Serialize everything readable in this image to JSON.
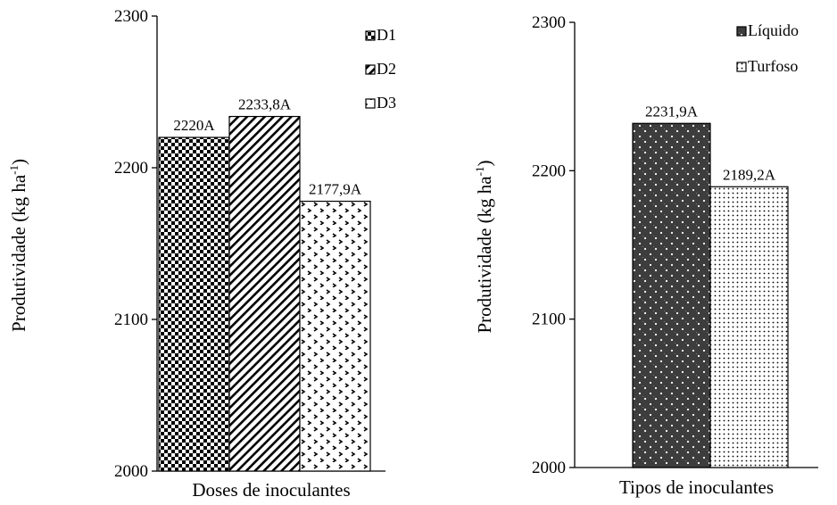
{
  "chart_data": [
    {
      "type": "bar",
      "xlabel": "Doses de inoculantes",
      "ylabel_main": "Produtividade (kg ha",
      "ylabel_sup": "-1",
      "ylabel_close": ")",
      "ylim": [
        2000,
        2300
      ],
      "yticks": [
        "2000",
        "2100",
        "2200",
        "2300"
      ],
      "grid": false,
      "legend_position": "top-right",
      "series": [
        {
          "name": "D1",
          "value": 2220.0,
          "label": "2220A",
          "pattern": "checker"
        },
        {
          "name": "D2",
          "value": 2233.8,
          "label": "2233,8A",
          "pattern": "diagonal"
        },
        {
          "name": "D3",
          "value": 2177.9,
          "label": "2177,9A",
          "pattern": "chevron"
        }
      ]
    },
    {
      "type": "bar",
      "xlabel": "Tipos de inoculantes",
      "ylabel_main": "Produtividade (kg ha",
      "ylabel_sup": "-1",
      "ylabel_close": ")",
      "ylim": [
        2000,
        2300
      ],
      "yticks": [
        "2000",
        "2100",
        "2200",
        "2300"
      ],
      "grid": false,
      "legend_position": "top-right",
      "series": [
        {
          "name": "Líquido",
          "value": 2231.9,
          "label": "2231,9A",
          "pattern": "dotted-dark"
        },
        {
          "name": "Turfoso",
          "value": 2189.2,
          "label": "2189,2A",
          "pattern": "dotted-light"
        }
      ]
    }
  ]
}
